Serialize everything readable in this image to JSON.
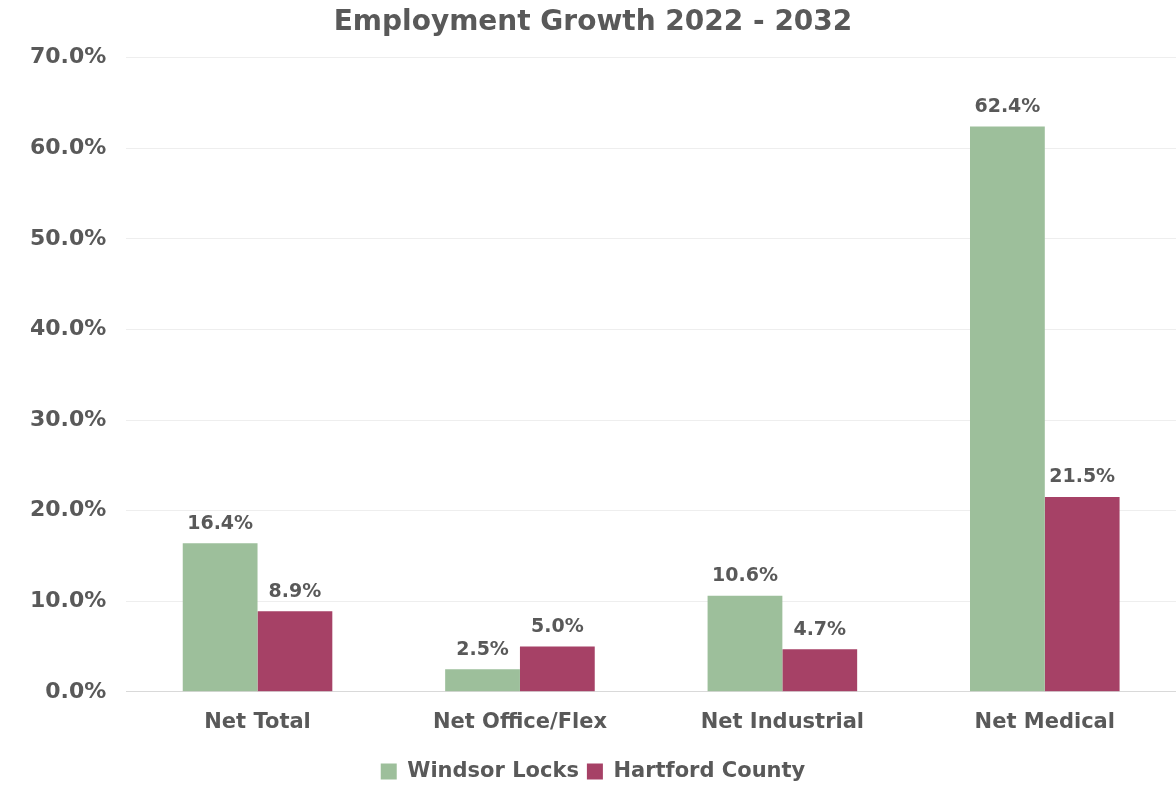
{
  "chart_data": {
    "type": "bar",
    "title": "Employment Growth 2022 - 2032",
    "categories": [
      "Net Total",
      "Net Office/Flex",
      "Net Industrial",
      "Net Medical"
    ],
    "series": [
      {
        "name": "Windsor Locks",
        "color": "#9dbf9b",
        "values": [
          16.4,
          2.5,
          10.6,
          62.4
        ],
        "value_labels": [
          "16.4%",
          "2.5%",
          "10.6%",
          "62.4%"
        ]
      },
      {
        "name": "Hartford County",
        "color": "#a64166",
        "values": [
          8.9,
          5.0,
          4.7,
          21.5
        ],
        "value_labels": [
          "8.9%",
          "5.0%",
          "4.7%",
          "21.5%"
        ]
      }
    ],
    "ylim": [
      0,
      70
    ],
    "yticks": [
      {
        "value": 0,
        "label": "0.0%"
      },
      {
        "value": 10,
        "label": "10.0%"
      },
      {
        "value": 20,
        "label": "20.0%"
      },
      {
        "value": 30,
        "label": "30.0%"
      },
      {
        "value": 40,
        "label": "40.0%"
      },
      {
        "value": 50,
        "label": "50.0%"
      },
      {
        "value": 60,
        "label": "60.0%"
      },
      {
        "value": 70,
        "label": "70.0%"
      }
    ],
    "grid": "y",
    "legend": "bottom"
  }
}
